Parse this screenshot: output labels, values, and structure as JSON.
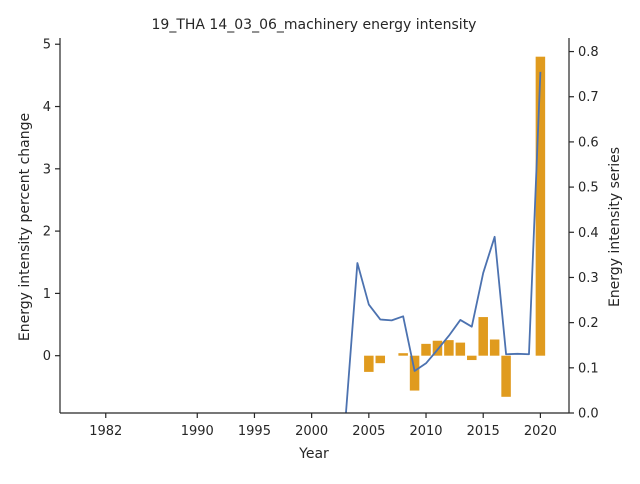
{
  "chart_data": {
    "type": "bar+line",
    "title": "19_THA 14_03_06_machinery energy intensity",
    "xlabel": "Year",
    "ylabel_left": "Energy intensity percent change",
    "ylabel_right": "Energy intensity series",
    "x_ticks": [
      "1982",
      "1990",
      "1995",
      "2000",
      "2005",
      "2010",
      "2015",
      "2020"
    ],
    "left_ticks": [
      "0",
      "1",
      "2",
      "3",
      "4",
      "5"
    ],
    "right_ticks": [
      "0.0",
      "0.1",
      "0.2",
      "0.3",
      "0.4",
      "0.5",
      "0.6",
      "0.7",
      "0.8"
    ],
    "left_ylim": [
      -0.92,
      5.1
    ],
    "right_ylim": [
      0.0,
      0.83
    ],
    "xlim": [
      1978.0,
      2022.5
    ],
    "grid": false,
    "colors": {
      "bars": "#E09B1E",
      "line": "#4C72B0",
      "axes": "#262626"
    },
    "bars": {
      "axis": "left",
      "x": [
        2005,
        2006,
        2008,
        2009,
        2010,
        2011,
        2012,
        2013,
        2014,
        2015,
        2016,
        2017,
        2020
      ],
      "values": [
        -0.26,
        -0.12,
        0.04,
        -0.56,
        0.19,
        0.24,
        0.25,
        0.21,
        -0.07,
        0.62,
        0.26,
        -0.66,
        4.8
      ]
    },
    "line": {
      "axis": "right",
      "x": [
        2003,
        2004,
        2005,
        2006,
        2007,
        2008,
        2009,
        2010,
        2011,
        2012,
        2013,
        2014,
        2015,
        2016,
        2017,
        2018,
        2019,
        2020
      ],
      "values": [
        0.0,
        0.332,
        0.24,
        0.207,
        0.205,
        0.214,
        0.093,
        0.11,
        0.14,
        0.171,
        0.206,
        0.191,
        0.31,
        0.39,
        0.13,
        0.131,
        0.13,
        0.755
      ]
    }
  }
}
